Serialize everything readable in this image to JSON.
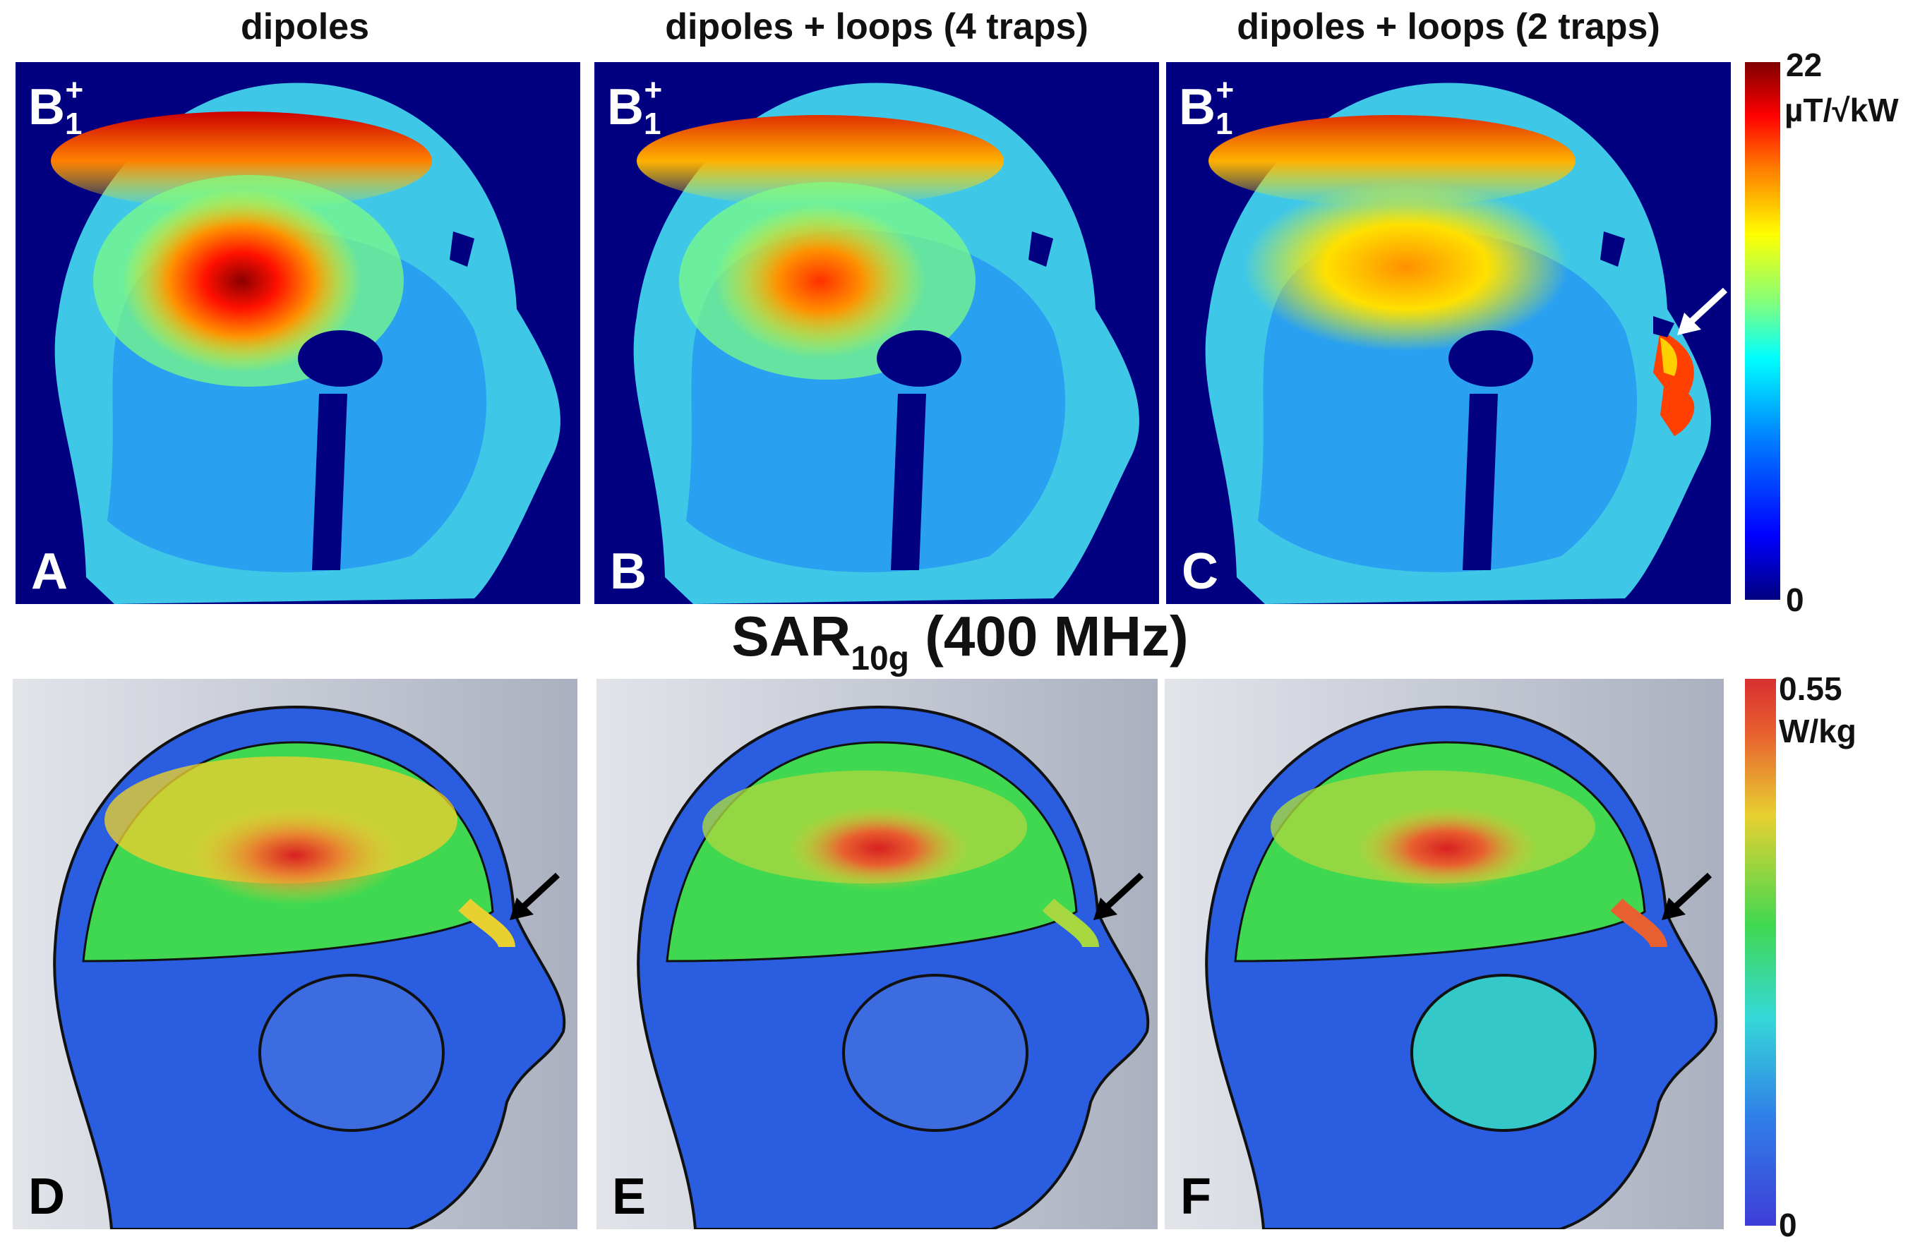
{
  "column_titles": [
    "dipoles",
    "dipoles + loops (4 traps)",
    "dipoles + loops (2 traps)"
  ],
  "b1": {
    "label_main": "B",
    "label_sub": "1",
    "label_sup": "+",
    "panel_letters": [
      "A",
      "B",
      "C"
    ],
    "colorbar": {
      "max": "22",
      "unit": "µT/√kW",
      "min": "0"
    }
  },
  "sar": {
    "title_main": "SAR",
    "title_sub": "10g",
    "title_rest": " (400 MHz)",
    "panel_letters": [
      "D",
      "E",
      "F"
    ],
    "colorbar": {
      "max": "0.55",
      "unit": "W/kg",
      "min": "0"
    }
  },
  "colors": {
    "b1_background": "#000080",
    "sar_background": "#b9bdc8",
    "jet_colormap": [
      "#00007f",
      "#0000ff",
      "#007fff",
      "#00ffff",
      "#7fff7f",
      "#ffff00",
      "#ff7f00",
      "#ff0000",
      "#7f0000"
    ],
    "sar_colormap": [
      "#3d3dd8",
      "#2f80e8",
      "#35d8d8",
      "#40d850",
      "#e8d030",
      "#e86030",
      "#d83030"
    ]
  }
}
